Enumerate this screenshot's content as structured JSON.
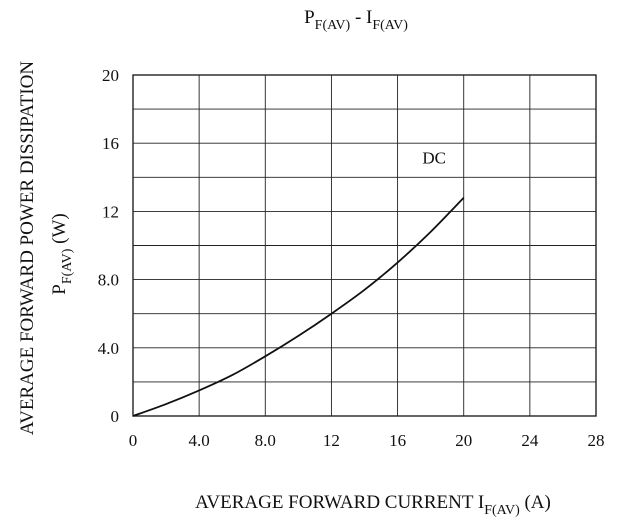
{
  "chart_data": {
    "type": "line",
    "title": {
      "main": "P",
      "main_sub": "F(AV)",
      "sep": " - ",
      "second": "I",
      "second_sub": "F(AV)"
    },
    "xlabel": {
      "text": "AVERAGE FORWARD CURRENT  I",
      "sub": "F(AV)",
      "unit": " (A)"
    },
    "ylabel": {
      "line1": "AVERAGE FORWARD POWER DISSIPATION",
      "line2_main": "P",
      "line2_sub": "F(AV)",
      "line2_unit": " (W)"
    },
    "x_ticks": [
      "0",
      "4.0",
      "8.0",
      "12",
      "16",
      "20",
      "24",
      "28"
    ],
    "y_ticks": [
      "0",
      "4.0",
      "8.0",
      "12",
      "16",
      "20"
    ],
    "xlim": [
      0,
      28
    ],
    "ylim": [
      0,
      20
    ],
    "grid": true,
    "annotation": {
      "text": "DC",
      "x": 17.5,
      "y": 14.8
    },
    "series": [
      {
        "x": [
          0,
          2,
          4,
          6,
          8,
          10,
          12,
          14,
          16,
          18,
          20
        ],
        "y": [
          0,
          0.7,
          1.5,
          2.4,
          3.5,
          4.7,
          6.0,
          7.4,
          9.0,
          10.8,
          12.8
        ]
      }
    ]
  }
}
